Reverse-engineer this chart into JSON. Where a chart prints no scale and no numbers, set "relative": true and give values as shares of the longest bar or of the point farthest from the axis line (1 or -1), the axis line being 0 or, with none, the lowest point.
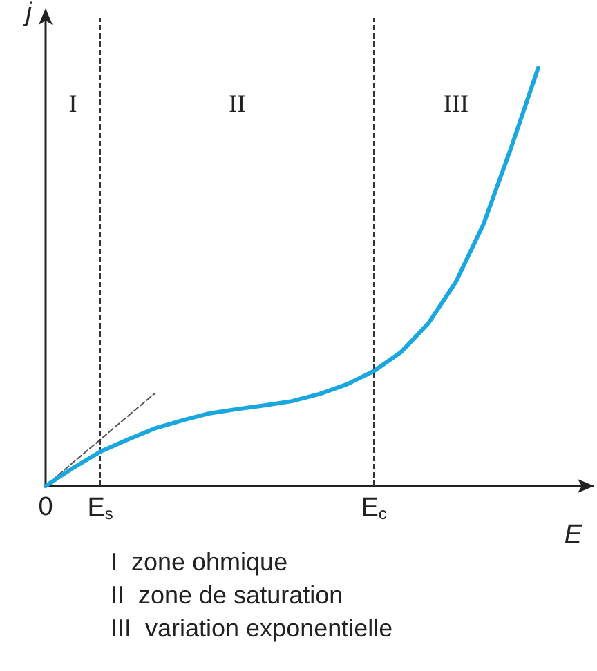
{
  "chart_data": {
    "type": "line",
    "relative": true,
    "xlabel": "E",
    "ylabel": "j",
    "categories": [
      "0",
      null,
      "E$_{s}$",
      null,
      null,
      null,
      null,
      null,
      null,
      null,
      null,
      null,
      "E$_{c}$",
      null,
      null,
      null,
      null,
      null,
      null,
      null,
      null
    ],
    "series": [
      {
        "color": "#1aa7e0",
        "values": [
          0,
          0.043,
          0.082,
          0.111,
          0.138,
          0.157,
          0.174,
          0.184,
          0.193,
          0.203,
          0.22,
          0.243,
          0.275,
          0.321,
          0.39,
          0.489,
          0.626,
          0.807,
          1,
          null,
          null
        ]
      },
      {
        "color": "#555555",
        "line_style": "dashed",
        "values": [
          0,
          0.056,
          0.111,
          0.167,
          0.222,
          null,
          null,
          null,
          null,
          null,
          null,
          null,
          null,
          null,
          null,
          null,
          null,
          null,
          null,
          null,
          null
        ]
      }
    ],
    "ref_lines": [
      {
        "axis": "x",
        "value": "E$_{s}$",
        "line_style": "dashed",
        "color": "#333333"
      },
      {
        "axis": "x",
        "value": "E$_{c}$",
        "line_style": "dashed",
        "color": "#333333"
      }
    ],
    "annotations": [
      "I",
      "II",
      "III",
      "I  zone ohmique",
      "II  zone de saturation",
      "III  variation exponentielle"
    ],
    "grid": false,
    "marker": "none"
  }
}
